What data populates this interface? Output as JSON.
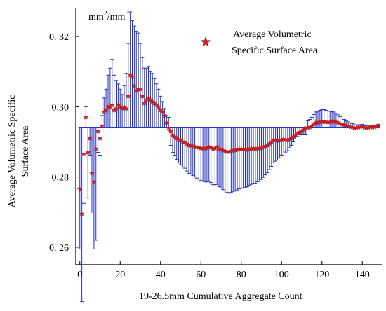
{
  "chart_data": {
    "type": "scatter",
    "title": "",
    "xlabel": "19-26.5mm Cumulative Aggregate Count",
    "ylabel": "Average Volumetric Specific Surface Area",
    "unit_label": "mm²/mm³",
    "xlim": [
      -2,
      150
    ],
    "ylim": [
      0.255,
      0.328
    ],
    "x_ticks": [
      0,
      20,
      40,
      60,
      80,
      100,
      120,
      140
    ],
    "y_ticks": [
      0.26,
      0.28,
      0.3,
      0.32
    ],
    "y_tick_labels": [
      "0. 26",
      "0.28",
      "0.30",
      "0. 32"
    ],
    "baseline": 0.294,
    "grid": false,
    "legend_position": "top-right",
    "colors": {
      "marker": "#e31a1c",
      "marker_edge": "#8b1a1a",
      "error_bar": "#2233bb",
      "axis": "#000000"
    },
    "series": [
      {
        "name": "Average Volumetric Specific Surface Area",
        "x": [
          0,
          1,
          2,
          3,
          4,
          5,
          6,
          7,
          8,
          9,
          10,
          11,
          12,
          13,
          14,
          15,
          16,
          17,
          18,
          19,
          20,
          21,
          22,
          23,
          24,
          25,
          26,
          27,
          28,
          29,
          30,
          31,
          32,
          33,
          34,
          35,
          36,
          37,
          38,
          39,
          40,
          41,
          42,
          43,
          44,
          45,
          46,
          47,
          48,
          49,
          50,
          51,
          52,
          53,
          54,
          55,
          56,
          57,
          58,
          59,
          60,
          61,
          62,
          63,
          64,
          65,
          66,
          67,
          68,
          69,
          70,
          71,
          72,
          73,
          74,
          75,
          76,
          77,
          78,
          79,
          80,
          81,
          82,
          83,
          84,
          85,
          86,
          87,
          88,
          89,
          90,
          91,
          92,
          93,
          94,
          95,
          96,
          97,
          98,
          99,
          100,
          101,
          102,
          103,
          104,
          105,
          106,
          107,
          108,
          109,
          110,
          111,
          112,
          113,
          114,
          115,
          116,
          117,
          118,
          119,
          120,
          121,
          122,
          123,
          124,
          125,
          126,
          127,
          128,
          129,
          130,
          131,
          132,
          133,
          134,
          135,
          136,
          137,
          138,
          139,
          140,
          141,
          142,
          143,
          144,
          145,
          146,
          147,
          148
        ],
        "y": [
          0.2765,
          0.2695,
          0.2865,
          0.297,
          0.287,
          0.291,
          0.281,
          0.2785,
          0.288,
          0.293,
          0.291,
          0.2945,
          0.2985,
          0.299,
          0.3,
          0.3,
          0.3005,
          0.299,
          0.2995,
          0.3005,
          0.3,
          0.2995,
          0.3,
          0.2995,
          0.303,
          0.309,
          0.3085,
          0.306,
          0.3045,
          0.305,
          0.305,
          0.303,
          0.301,
          0.302,
          0.3025,
          0.302,
          0.3015,
          0.301,
          0.3005,
          0.3,
          0.299,
          0.2985,
          0.2975,
          0.2955,
          0.294,
          0.293,
          0.292,
          0.2915,
          0.291,
          0.2905,
          0.2905,
          0.29,
          0.29,
          0.2895,
          0.289,
          0.289,
          0.2888,
          0.2886,
          0.2885,
          0.2884,
          0.2882,
          0.2882,
          0.2881,
          0.2882,
          0.2885,
          0.2884,
          0.288,
          0.2882,
          0.2885,
          0.288,
          0.2878,
          0.2876,
          0.2874,
          0.2872,
          0.2872,
          0.2874,
          0.2876,
          0.2876,
          0.2878,
          0.288,
          0.288,
          0.2879,
          0.2878,
          0.2878,
          0.288,
          0.2881,
          0.2882,
          0.288,
          0.2882,
          0.2882,
          0.2883,
          0.2885,
          0.2888,
          0.289,
          0.2895,
          0.29,
          0.2905,
          0.2905,
          0.2903,
          0.2905,
          0.2905,
          0.2908,
          0.2906,
          0.2905,
          0.2908,
          0.291,
          0.2915,
          0.292,
          0.2925,
          0.2928,
          0.293,
          0.2935,
          0.2938,
          0.294,
          0.2942,
          0.2945,
          0.295,
          0.2955,
          0.2955,
          0.2956,
          0.2957,
          0.2958,
          0.2957,
          0.2956,
          0.2957,
          0.2958,
          0.2959,
          0.2957,
          0.2955,
          0.2952,
          0.295,
          0.2948,
          0.2946,
          0.2945,
          0.2943,
          0.2942,
          0.294,
          0.294,
          0.2941,
          0.2942,
          0.2943,
          0.2941,
          0.294,
          0.2941,
          0.2942,
          0.2941,
          0.2942,
          0.2943,
          0.2945
        ],
        "error": [
          0.017,
          0.025,
          0.014,
          0.003,
          0.013,
          0.005,
          0.011,
          0.019,
          0.026,
          0.006,
          0.005,
          0.003,
          0.004,
          0.006,
          0.009,
          0.011,
          0.013,
          0.01,
          0.008,
          0.006,
          0.005,
          0.004,
          0.006,
          0.01,
          0.015,
          0.018,
          0.016,
          0.017,
          0.017,
          0.016,
          0.013,
          0.011,
          0.01,
          0.009,
          0.009,
          0.008,
          0.008,
          0.007,
          0.006,
          0.005,
          0.004,
          0.003,
          0.002,
          0.002,
          0.003,
          0.004,
          0.005,
          0.0055,
          0.006,
          0.0065,
          0.007,
          0.0072,
          0.0075,
          0.0078,
          0.008,
          0.0082,
          0.0084,
          0.0086,
          0.0088,
          0.009,
          0.0092,
          0.0094,
          0.0095,
          0.0096,
          0.0098,
          0.01,
          0.0102,
          0.0104,
          0.0106,
          0.0108,
          0.011,
          0.0112,
          0.0114,
          0.0116,
          0.0118,
          0.0118,
          0.0117,
          0.0116,
          0.0115,
          0.0114,
          0.0112,
          0.011,
          0.0108,
          0.0106,
          0.0104,
          0.0102,
          0.01,
          0.0098,
          0.0096,
          0.0094,
          0.009,
          0.0086,
          0.0082,
          0.0078,
          0.0074,
          0.007,
          0.0065,
          0.006,
          0.0055,
          0.005,
          0.0045,
          0.004,
          0.0035,
          0.003,
          0.0025,
          0.002,
          0.0015,
          0.0012,
          0.001,
          0.0008,
          0.001,
          0.0015,
          0.0018,
          0.002,
          0.0022,
          0.0025,
          0.0028,
          0.003,
          0.0032,
          0.0034,
          0.0035,
          0.0034,
          0.0033,
          0.0032,
          0.003,
          0.0028,
          0.0026,
          0.0024,
          0.0022,
          0.002,
          0.0018,
          0.0016,
          0.0014,
          0.0012,
          0.0011,
          0.001,
          0.0009,
          0.0008,
          0.0008,
          0.0007,
          0.0007,
          0.0006,
          0.0006,
          0.0006,
          0.0005,
          0.0005,
          0.0005,
          0.0005,
          0.0005
        ]
      }
    ]
  },
  "legend": {
    "line1": "Average Volumetric",
    "line2": "Specific Surface Area"
  },
  "ylabel_lines": [
    "Average Volumetric Specific",
    "Surface Area"
  ]
}
